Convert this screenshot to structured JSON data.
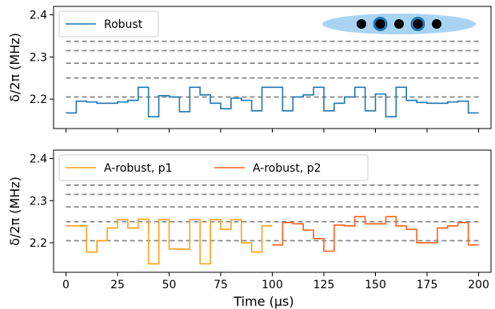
{
  "chart_data": [
    {
      "type": "line",
      "step": true,
      "ylabel": "δ/2π (MHz)",
      "xlim": [
        -6,
        206
      ],
      "ylim": [
        2.13,
        2.42
      ],
      "yticks": [
        2.2,
        2.3,
        2.4
      ],
      "ytick_labels": [
        "2.2",
        "2.3",
        "2.4"
      ],
      "grid": false,
      "legend_position": "top-left",
      "reference_levels": [
        2.205,
        2.25,
        2.285,
        2.315,
        2.337
      ],
      "reference_color": "#808080",
      "series": [
        {
          "name": "Robust",
          "color": "#1f77b4",
          "x": [
            0,
            5,
            10,
            15,
            20,
            25,
            30,
            35,
            40,
            45,
            50,
            55,
            60,
            65,
            70,
            75,
            80,
            85,
            90,
            95,
            100,
            105,
            110,
            115,
            120,
            125,
            130,
            135,
            140,
            145,
            150,
            155,
            160,
            165,
            170,
            175,
            180,
            185,
            190,
            195,
            200
          ],
          "y": [
            2.167,
            2.195,
            2.193,
            2.19,
            2.19,
            2.193,
            2.197,
            2.228,
            2.158,
            2.208,
            2.205,
            2.17,
            2.228,
            2.21,
            2.19,
            2.177,
            2.202,
            2.197,
            2.172,
            2.228,
            2.228,
            2.172,
            2.205,
            2.21,
            2.228,
            2.172,
            2.19,
            2.205,
            2.228,
            2.172,
            2.212,
            2.158,
            2.228,
            2.197,
            2.192,
            2.19,
            2.19,
            2.193,
            2.195,
            2.167,
            2.167
          ]
        }
      ],
      "annotation": {
        "type": "ion-chain",
        "ellipse_color": "#a8d4f2",
        "dots": 5,
        "highlighted": [
          2,
          4
        ],
        "highlight_color": "#1f77b4"
      }
    },
    {
      "type": "line",
      "step": true,
      "xlabel": "Time (μs)",
      "ylabel": "δ/2π (MHz)",
      "xlim": [
        -6,
        206
      ],
      "ylim": [
        2.13,
        2.42
      ],
      "xticks": [
        0,
        25,
        50,
        75,
        100,
        125,
        150,
        175,
        200
      ],
      "xtick_labels": [
        "0",
        "25",
        "50",
        "75",
        "100",
        "125",
        "150",
        "175",
        "200"
      ],
      "yticks": [
        2.2,
        2.3,
        2.4
      ],
      "ytick_labels": [
        "2.2",
        "2.3",
        "2.4"
      ],
      "grid": false,
      "legend_position": "top-left",
      "reference_levels": [
        2.205,
        2.25,
        2.285,
        2.315,
        2.337
      ],
      "reference_color": "#808080",
      "series": [
        {
          "name": "A-robust, p1",
          "color": "#ff9f1c",
          "x": [
            0,
            5,
            10,
            15,
            20,
            25,
            30,
            35,
            40,
            45,
            50,
            55,
            60,
            65,
            70,
            75,
            80,
            85,
            90,
            95,
            100
          ],
          "y": [
            2.24,
            2.24,
            2.178,
            2.205,
            2.235,
            2.255,
            2.235,
            2.256,
            2.15,
            2.255,
            2.185,
            2.185,
            2.255,
            2.15,
            2.255,
            2.232,
            2.255,
            2.2,
            2.178,
            2.24,
            2.24
          ]
        },
        {
          "name": "A-robust, p2",
          "color": "#ff5f1a",
          "x": [
            100,
            105,
            110,
            115,
            120,
            125,
            130,
            135,
            140,
            145,
            150,
            155,
            160,
            165,
            170,
            175,
            180,
            185,
            190,
            195,
            200
          ],
          "y": [
            2.195,
            2.248,
            2.245,
            2.23,
            2.21,
            2.18,
            2.242,
            2.24,
            2.262,
            2.245,
            2.245,
            2.262,
            2.24,
            2.232,
            2.2,
            2.2,
            2.235,
            2.24,
            2.248,
            2.195,
            2.195
          ]
        }
      ]
    }
  ]
}
